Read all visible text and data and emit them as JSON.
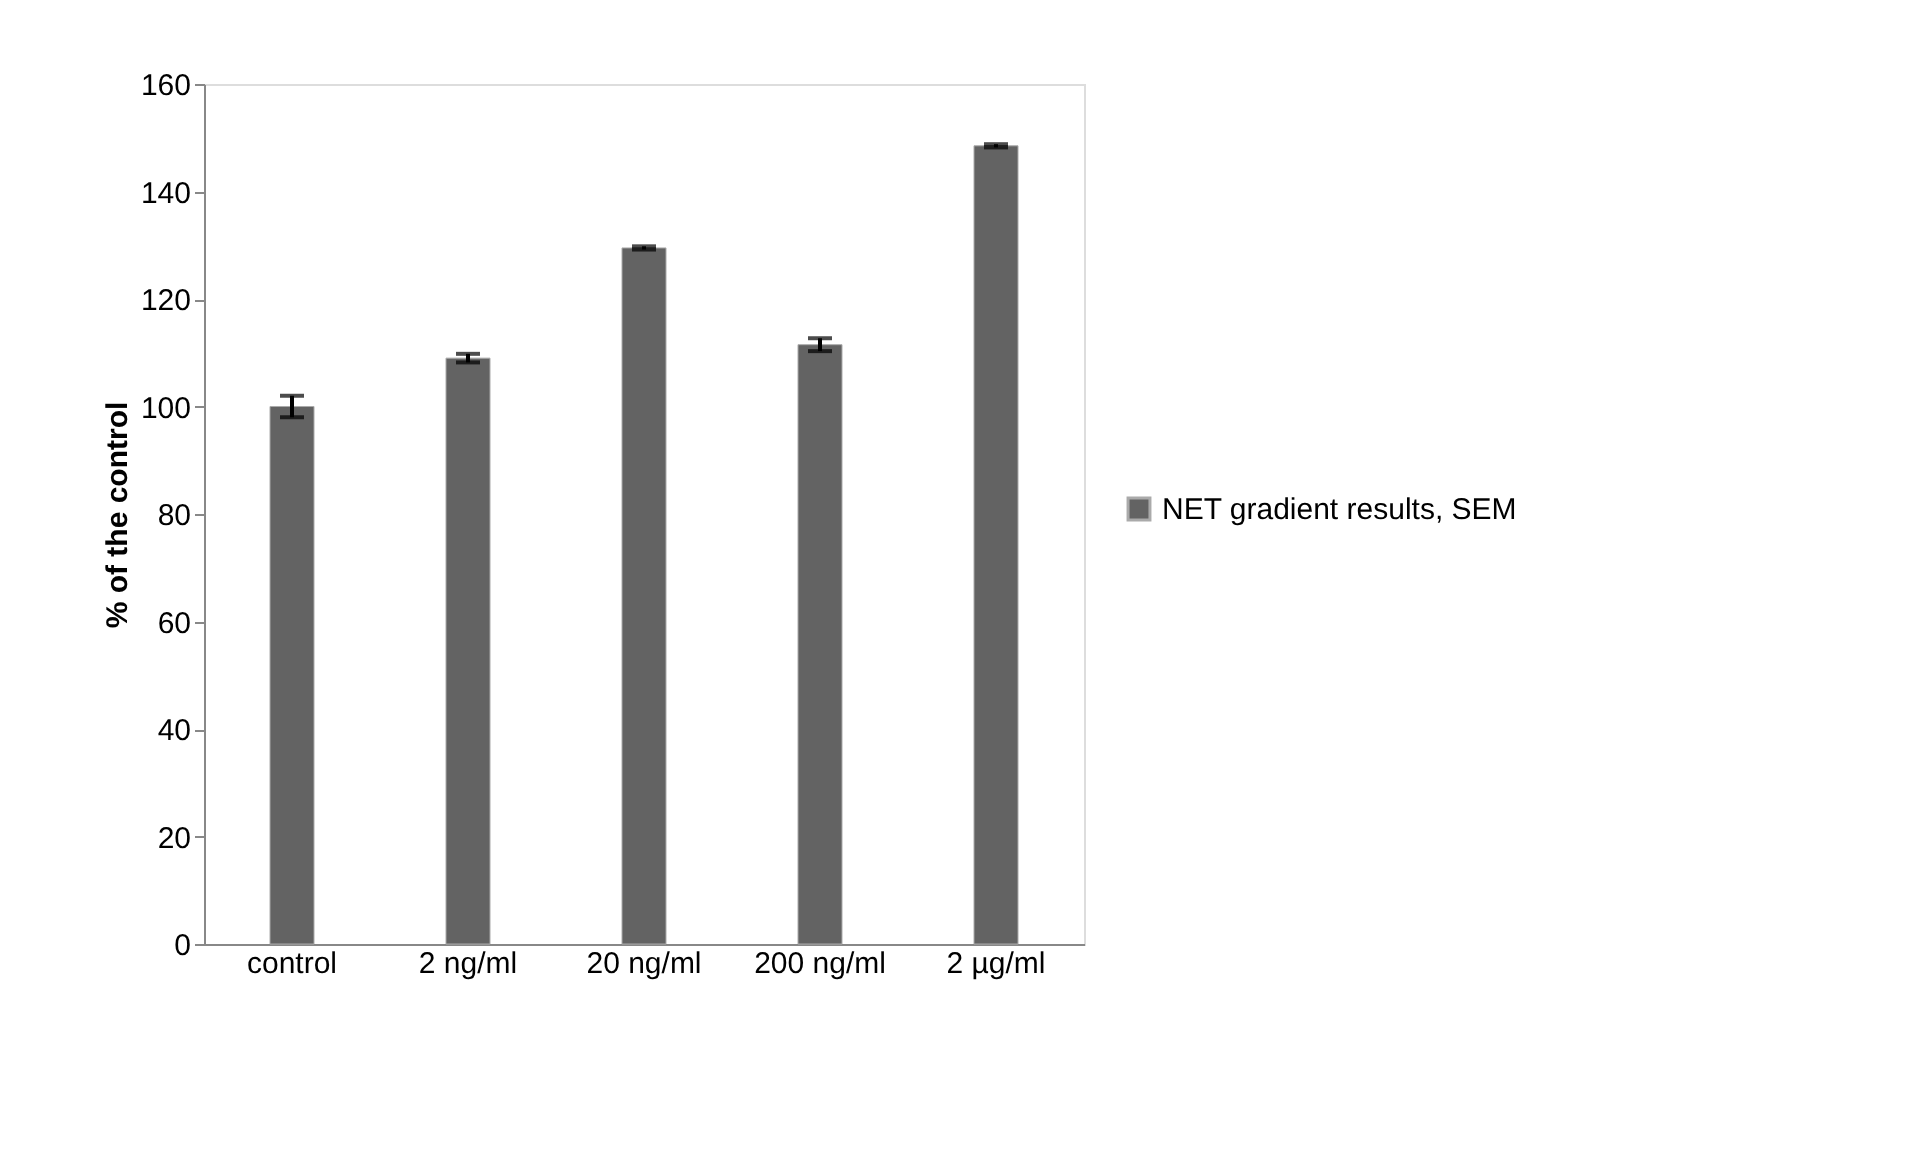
{
  "chart_data": {
    "type": "bar",
    "ylabel": "% of the control",
    "categories": [
      "control",
      "2 ng/ml",
      "20 ng/ml",
      "200 ng/ml",
      "2 µg/ml"
    ],
    "series": [
      {
        "name": "NET gradient results, SEM",
        "color": "#636363",
        "values": [
          100,
          109,
          129.5,
          111.5,
          148.5
        ],
        "errors": [
          2,
          0.8,
          0.3,
          1.2,
          0.3
        ]
      }
    ],
    "ylim": [
      0,
      160
    ],
    "yticks": [
      0,
      20,
      40,
      60,
      80,
      100,
      120,
      140,
      160
    ],
    "grid": false,
    "legend": "right"
  }
}
